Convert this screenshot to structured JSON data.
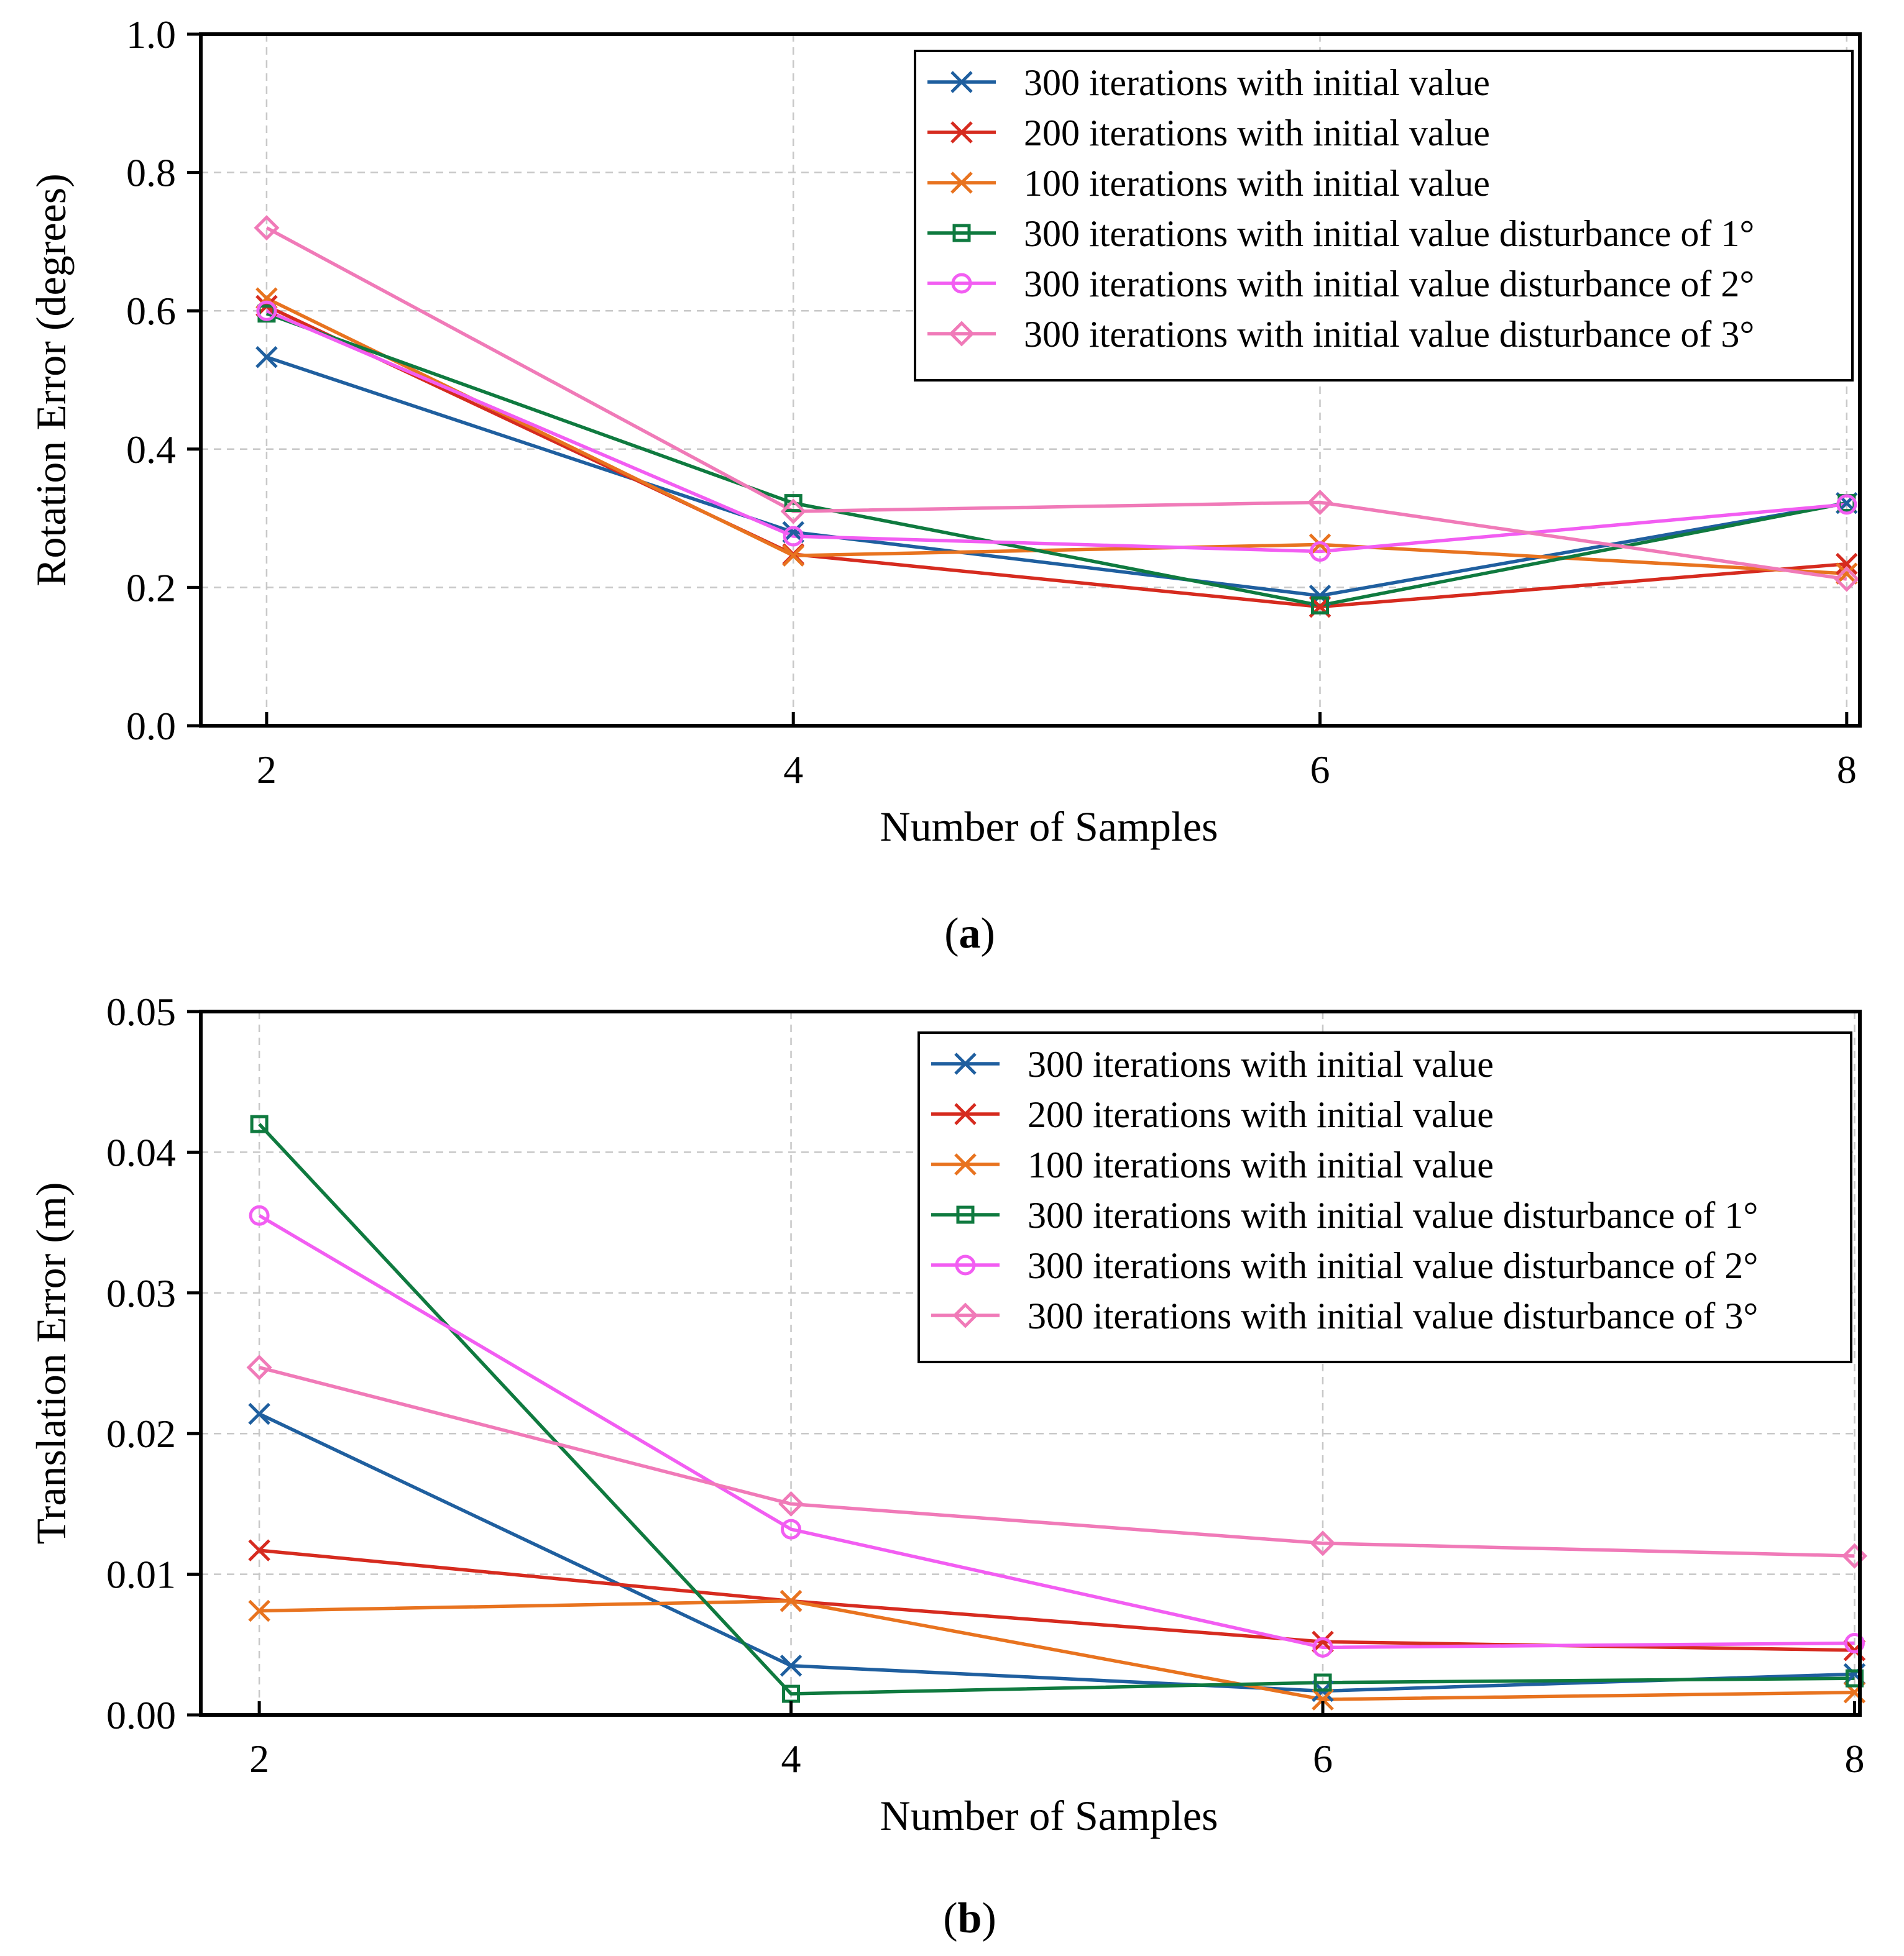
{
  "chart_data": [
    {
      "type": "line",
      "panel_label": "a",
      "xlabel": "Number of Samples",
      "ylabel": "Rotation Error (degrees)",
      "x": [
        2,
        4,
        6,
        8
      ],
      "xticks": [
        "2",
        "4",
        "6",
        "8"
      ],
      "xlim": [
        1.75,
        8.05
      ],
      "ylim": [
        0,
        1
      ],
      "yticks": [
        "0.0",
        "0.2",
        "0.4",
        "0.6",
        "0.8",
        "1.0"
      ],
      "ytick_values": [
        0,
        0.2,
        0.4,
        0.6,
        0.8,
        1.0
      ],
      "grid": true,
      "legend_position": "top-right",
      "series": [
        {
          "name": "300 iterations with initial value",
          "color": "#1f5f9f",
          "marker": "x",
          "values": [
            0.533,
            0.28,
            0.188,
            0.322
          ]
        },
        {
          "name": "200 iterations with initial value",
          "color": "#d62b1f",
          "marker": "x",
          "values": [
            0.607,
            0.248,
            0.172,
            0.234
          ]
        },
        {
          "name": "100 iterations with initial value",
          "color": "#e8731f",
          "marker": "x",
          "values": [
            0.618,
            0.246,
            0.262,
            0.22
          ]
        },
        {
          "name": "300 iterations with initial value disturbance of 1°",
          "color": "#0f7a3f",
          "marker": "square",
          "values": [
            0.596,
            0.322,
            0.174,
            0.322
          ]
        },
        {
          "name": "300 iterations with initial value disturbance of 2°",
          "color": "#f25df2",
          "marker": "circle",
          "values": [
            0.6,
            0.274,
            0.252,
            0.32
          ]
        },
        {
          "name": "300 iterations with initial value disturbance of 3°",
          "color": "#f07ab8",
          "marker": "diamond",
          "values": [
            0.72,
            0.31,
            0.323,
            0.212
          ]
        }
      ]
    },
    {
      "type": "line",
      "panel_label": "b",
      "xlabel": "Number of Samples",
      "ylabel": "Translation Error (m)",
      "x": [
        2,
        4,
        6,
        8
      ],
      "xticks": [
        "2",
        "4",
        "6",
        "8"
      ],
      "xlim": [
        1.78,
        8.02
      ],
      "ylim": [
        0,
        0.05
      ],
      "yticks": [
        "0.00",
        "0.01",
        "0.02",
        "0.03",
        "0.04",
        "0.05"
      ],
      "ytick_values": [
        0,
        0.01,
        0.02,
        0.03,
        0.04,
        0.05
      ],
      "grid": true,
      "legend_position": "top-right",
      "series": [
        {
          "name": "300 iterations with initial value",
          "color": "#1f5f9f",
          "marker": "x",
          "values": [
            0.0214,
            0.0035,
            0.0017,
            0.0029
          ]
        },
        {
          "name": "200 iterations with initial value",
          "color": "#d62b1f",
          "marker": "x",
          "values": [
            0.0117,
            0.0081,
            0.0052,
            0.0046
          ]
        },
        {
          "name": "100 iterations with initial value",
          "color": "#e8731f",
          "marker": "x",
          "values": [
            0.0074,
            0.0081,
            0.0011,
            0.0016
          ]
        },
        {
          "name": "300 iterations with initial value disturbance of 1°",
          "color": "#0f7a3f",
          "marker": "square",
          "values": [
            0.042,
            0.0015,
            0.0023,
            0.0026
          ]
        },
        {
          "name": "300 iterations with initial value disturbance of 2°",
          "color": "#f25df2",
          "marker": "circle",
          "values": [
            0.0355,
            0.0132,
            0.0048,
            0.0051
          ]
        },
        {
          "name": "300 iterations with initial value disturbance of 3°",
          "color": "#f07ab8",
          "marker": "diamond",
          "values": [
            0.0247,
            0.015,
            0.0122,
            0.0113
          ]
        }
      ]
    }
  ]
}
